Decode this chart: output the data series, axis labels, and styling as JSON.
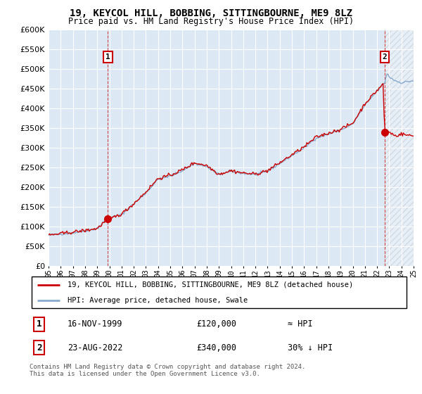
{
  "title": "19, KEYCOL HILL, BOBBING, SITTINGBOURNE, ME9 8LZ",
  "subtitle": "Price paid vs. HM Land Registry's House Price Index (HPI)",
  "ylim": [
    0,
    600000
  ],
  "yticks": [
    0,
    50000,
    100000,
    150000,
    200000,
    250000,
    300000,
    350000,
    400000,
    450000,
    500000,
    550000,
    600000
  ],
  "background_color": "#ffffff",
  "plot_bg_color": "#dce9f5",
  "grid_color": "#ffffff",
  "sale1_price": 120000,
  "sale2_price": 340000,
  "line_color_red": "#cc0000",
  "line_color_blue": "#88aacc",
  "legend_entry1": "19, KEYCOL HILL, BOBBING, SITTINGBOURNE, ME9 8LZ (detached house)",
  "legend_entry2": "HPI: Average price, detached house, Swale",
  "table_row1_num": "1",
  "table_row1_date": "16-NOV-1999",
  "table_row1_price": "£120,000",
  "table_row1_hpi": "≈ HPI",
  "table_row2_num": "2",
  "table_row2_date": "23-AUG-2022",
  "table_row2_price": "£340,000",
  "table_row2_hpi": "30% ↓ HPI",
  "footer": "Contains HM Land Registry data © Crown copyright and database right 2024.\nThis data is licensed under the Open Government Licence v3.0.",
  "xstart_year": 1995,
  "xend_year": 2025,
  "sale1_year": 1999.88,
  "sale2_year": 2022.62
}
